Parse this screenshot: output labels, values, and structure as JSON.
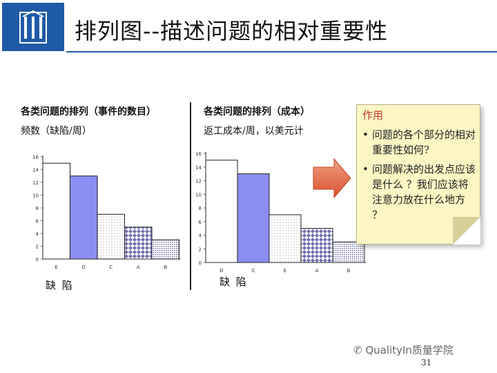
{
  "header": {
    "title": "排列图--描述问题的相对重要性",
    "accent_color": "#1f5aa6"
  },
  "chart_data": [
    {
      "type": "bar",
      "title": "各类问题的排列（事件的数目）",
      "ylabel": "频数（缺陷/周）",
      "xlabel": "缺 陷",
      "categories": [
        "E",
        "D",
        "C",
        "A",
        "B"
      ],
      "values": [
        15,
        13,
        7,
        5,
        3
      ],
      "ylim": [
        0,
        16
      ],
      "yticks": [
        0,
        2,
        4,
        6,
        8,
        10,
        12,
        14,
        16
      ],
      "grid": false
    },
    {
      "type": "bar",
      "title": "各类问题的排列（成本）",
      "ylabel": "返工成本/周，以美元计",
      "xlabel": "缺 陷",
      "categories": [
        "D",
        "C",
        "E",
        "A",
        "B"
      ],
      "values": [
        15,
        13,
        7,
        5,
        3
      ],
      "ylim": [
        0,
        16
      ],
      "yticks": [
        0,
        2,
        4,
        6,
        8,
        10,
        12,
        14,
        16
      ],
      "grid": false
    }
  ],
  "note": {
    "title": "作用",
    "bullet_symbol": "•",
    "items": [
      "问题的各个部分的相对重要性如何?",
      "问题解决的出发点应该是什么 ？我们应该将注意力放在什么地方 ？"
    ]
  },
  "footer": {
    "watermark": "QualityIn质量学院",
    "page_number": "31"
  }
}
